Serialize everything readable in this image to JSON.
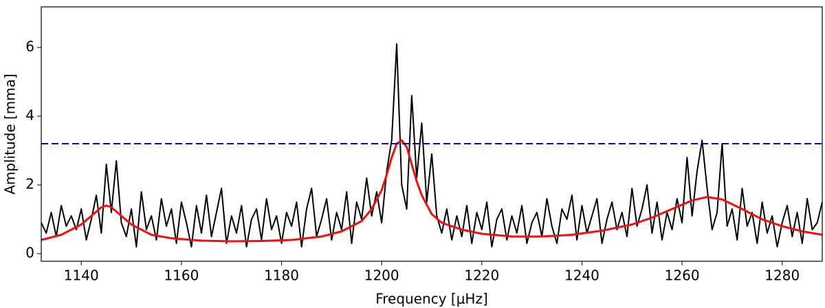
{
  "chart_data": {
    "type": "line",
    "x_label": "Frequency [μHz]",
    "y_label": "Amplitude [mma]",
    "xlim": [
      1132,
      1288
    ],
    "ylim": [
      -0.22,
      7.18
    ],
    "xticks": [
      1140,
      1160,
      1180,
      1200,
      1220,
      1240,
      1260,
      1280
    ],
    "yticks": [
      0,
      2,
      4,
      6
    ],
    "grid": false,
    "series": [
      {
        "color": "#000000",
        "width": 2,
        "dash": false,
        "x": [
          1132,
          1133,
          1134,
          1135,
          1136,
          1137,
          1138,
          1139,
          1140,
          1141,
          1142,
          1143,
          1144,
          1145,
          1146,
          1147,
          1148,
          1149,
          1150,
          1151,
          1152,
          1153,
          1154,
          1155,
          1156,
          1157,
          1158,
          1159,
          1160,
          1161,
          1162,
          1163,
          1164,
          1165,
          1166,
          1167,
          1168,
          1169,
          1170,
          1171,
          1172,
          1173,
          1174,
          1175,
          1176,
          1177,
          1178,
          1179,
          1180,
          1181,
          1182,
          1183,
          1184,
          1185,
          1186,
          1187,
          1188,
          1189,
          1190,
          1191,
          1192,
          1193,
          1194,
          1195,
          1196,
          1197,
          1198,
          1199,
          1200,
          1201,
          1202,
          1203,
          1204,
          1205,
          1206,
          1207,
          1208,
          1209,
          1210,
          1211,
          1212,
          1213,
          1214,
          1215,
          1216,
          1217,
          1218,
          1219,
          1220,
          1221,
          1222,
          1223,
          1224,
          1225,
          1226,
          1227,
          1228,
          1229,
          1230,
          1231,
          1232,
          1233,
          1234,
          1235,
          1236,
          1237,
          1238,
          1239,
          1240,
          1241,
          1242,
          1243,
          1244,
          1245,
          1246,
          1247,
          1248,
          1249,
          1250,
          1251,
          1252,
          1253,
          1254,
          1255,
          1256,
          1257,
          1258,
          1259,
          1260,
          1261,
          1262,
          1263,
          1264,
          1265,
          1266,
          1267,
          1268,
          1269,
          1270,
          1271,
          1272,
          1273,
          1274,
          1275,
          1276,
          1277,
          1278,
          1279,
          1280,
          1281,
          1282,
          1283,
          1284,
          1285,
          1286,
          1287,
          1288
        ],
        "values": [
          0.9,
          0.6,
          1.2,
          0.5,
          1.4,
          0.8,
          1.1,
          0.7,
          1.3,
          0.4,
          1.0,
          1.7,
          0.6,
          2.6,
          1.2,
          2.7,
          0.9,
          0.5,
          1.3,
          0.2,
          1.8,
          0.7,
          1.1,
          0.4,
          1.6,
          0.8,
          1.3,
          0.3,
          1.5,
          0.9,
          0.2,
          1.4,
          0.6,
          1.7,
          0.5,
          1.2,
          1.9,
          0.3,
          1.1,
          0.6,
          1.4,
          0.2,
          1.0,
          1.3,
          0.4,
          1.6,
          0.7,
          1.1,
          0.3,
          1.2,
          0.8,
          1.5,
          0.2,
          1.3,
          1.9,
          0.5,
          1.0,
          1.6,
          0.4,
          1.2,
          0.7,
          1.8,
          0.3,
          1.5,
          1.0,
          2.2,
          1.1,
          1.8,
          0.9,
          2.4,
          3.3,
          6.1,
          2.0,
          1.3,
          4.6,
          2.2,
          3.8,
          1.5,
          2.9,
          1.1,
          0.6,
          1.3,
          0.4,
          1.1,
          0.5,
          1.4,
          0.3,
          1.2,
          0.7,
          1.5,
          0.2,
          1.0,
          1.3,
          0.4,
          1.1,
          0.6,
          1.4,
          0.3,
          0.9,
          1.2,
          0.5,
          1.6,
          0.8,
          0.3,
          1.3,
          1.0,
          1.7,
          0.4,
          1.4,
          0.6,
          1.1,
          1.6,
          0.3,
          1.0,
          1.5,
          0.7,
          1.2,
          0.5,
          1.9,
          0.8,
          1.3,
          2.0,
          0.6,
          1.5,
          0.4,
          1.2,
          0.7,
          1.6,
          0.9,
          2.8,
          1.1,
          2.4,
          3.3,
          1.9,
          0.7,
          1.2,
          3.2,
          0.8,
          1.3,
          0.4,
          1.9,
          0.8,
          1.2,
          0.3,
          1.5,
          0.6,
          1.1,
          0.2,
          0.9,
          1.4,
          0.5,
          1.2,
          0.3,
          1.6,
          0.7,
          0.9,
          1.5
        ]
      },
      {
        "color": "#ee1111",
        "width": 3,
        "dash": false,
        "x": [
          1132,
          1136,
          1140,
          1142,
          1144,
          1145,
          1146,
          1148,
          1150,
          1154,
          1158,
          1164,
          1170,
          1176,
          1182,
          1188,
          1192,
          1196,
          1198,
          1200,
          1201,
          1202,
          1203,
          1204,
          1205,
          1206,
          1207,
          1208,
          1210,
          1212,
          1216,
          1220,
          1226,
          1232,
          1238,
          1244,
          1250,
          1254,
          1258,
          1262,
          1265,
          1268,
          1272,
          1276,
          1280,
          1284,
          1288
        ],
        "values": [
          0.4,
          0.55,
          0.85,
          1.1,
          1.35,
          1.4,
          1.35,
          1.1,
          0.85,
          0.55,
          0.45,
          0.38,
          0.36,
          0.37,
          0.4,
          0.5,
          0.65,
          0.95,
          1.3,
          1.85,
          2.3,
          2.8,
          3.2,
          3.3,
          3.1,
          2.6,
          2.1,
          1.7,
          1.15,
          0.9,
          0.7,
          0.58,
          0.5,
          0.5,
          0.55,
          0.67,
          0.85,
          1.05,
          1.3,
          1.55,
          1.65,
          1.58,
          1.3,
          1.0,
          0.8,
          0.65,
          0.55
        ]
      },
      {
        "color": "#0000dd",
        "width": 2,
        "dash": true,
        "x": [
          1132,
          1288
        ],
        "values": [
          3.2,
          3.2
        ]
      }
    ]
  }
}
